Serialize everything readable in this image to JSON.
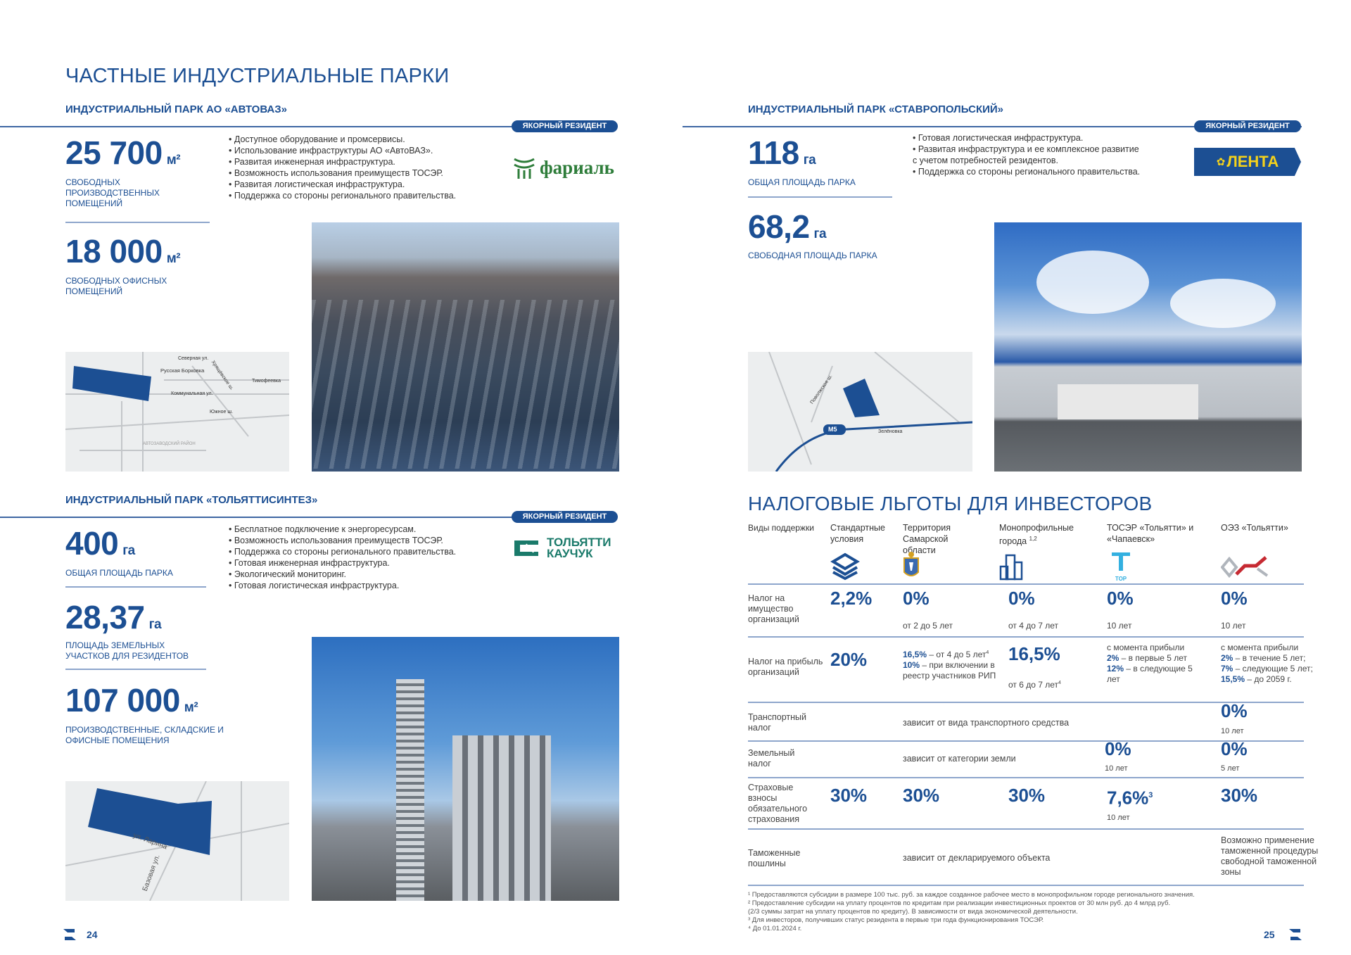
{
  "title": "ЧАСТНЫЕ ИНДУСТРИАЛЬНЫЕ ПАРКИ",
  "badge": "ЯКОРНЫЙ РЕЗИДЕНТ",
  "parks": [
    {
      "heading": "ИНДУСТРИАЛЬНЫЙ ПАРК АО «АВТОВАЗ»",
      "stats": [
        {
          "value": "25 700",
          "unit": "м²",
          "label": "СВОБОДНЫХ ПРОИЗВОДСТВЕННЫХ ПОМЕЩЕНИЙ"
        },
        {
          "value": "18 000",
          "unit": "м²",
          "label": "СВОБОДНЫХ ОФИСНЫХ ПОМЕЩЕНИЙ"
        }
      ],
      "bullets": [
        "• Доступное оборудование и промсервисы.",
        "• Использование инфраструктуры АО «АвтоВАЗ».",
        "• Развитая инженерная инфраструктура.",
        "• Возможность использования преимуществ ТОСЭР.",
        "• Развитая логистическая инфраструктура.",
        "• Поддержка со стороны регионального правительства."
      ],
      "resident_logo": "фариаль",
      "map_labels": [
        "Северная ул.",
        "Русская Борковка",
        "Коммунальная ул.",
        "Хрящёвское ш.",
        "Тимофеевка",
        "Южное ш.",
        "АВТОЗАВОДСКИЙ РАЙОН"
      ]
    },
    {
      "heading": "ИНДУСТРИАЛЬНЫЙ ПАРК «ТОЛЬЯТТИСИНТЕЗ»",
      "stats": [
        {
          "value": "400",
          "unit": "га",
          "label": "ОБЩАЯ ПЛОЩАДЬ ПАРКА"
        },
        {
          "value": "28,37",
          "unit": "га",
          "label": "ПЛОЩАДЬ ЗЕМЕЛЬНЫХ УЧАСТКОВ ДЛЯ РЕЗИДЕНТОВ"
        },
        {
          "value": "107 000",
          "unit": "м²",
          "label": "ПРОИЗВОДСТВЕННЫЕ, СКЛАДСКИЕ И ОФИСНЫЕ ПОМЕЩЕНИЯ"
        }
      ],
      "bullets": [
        "• Бесплатное подключение к энергоресурсам.",
        "• Возможность использования преимуществ ТОСЭР.",
        "• Поддержка со стороны регионального правительства.",
        "• Готовая инженерная инфраструктура.",
        "• Экологический мониторинг.",
        "• Готовая логистическая инфраструктура."
      ],
      "resident_logo_line1": "ТОЛЬЯТТИ",
      "resident_logo_line2": "КАУЧУК",
      "map_labels": [
        "ул. Ларина",
        "Базовая ул."
      ]
    },
    {
      "heading": "ИНДУСТРИАЛЬНЫЙ ПАРК «СТАВРОПОЛЬСКИЙ»",
      "stats": [
        {
          "value": "118",
          "unit": "га",
          "label": "ОБЩАЯ ПЛОЩАДЬ ПАРКА"
        },
        {
          "value": "68,2",
          "unit": "га",
          "label": "СВОБОДНАЯ ПЛОЩАДЬ ПАРКА"
        }
      ],
      "bullets": [
        "• Готовая логистическая инфраструктура.",
        "• Развитая инфраструктура и ее комплексное развитие",
        "с учетом потребностей резидентов.",
        "• Поддержка со стороны регионального правительства."
      ],
      "resident_logo": "ЛЕНТА",
      "map_labels": [
        "Поволжское ш.",
        "M5",
        "Зелёновка"
      ]
    }
  ],
  "tax": {
    "title": "НАЛОГОВЫЕ ЛЬГОТЫ ДЛЯ ИНВЕСТОРОВ",
    "columns": [
      "Виды поддержки",
      "Стандартные условия",
      "Территория Самарской области",
      "Монопрофильные города",
      "ТОСЭР «Тольятти» и «Чапаевск»",
      "ОЭЗ «Тольятти»"
    ],
    "col3_sup": "1,2",
    "tor_label": "TOP",
    "rows": [
      {
        "name": "Налог на имущество организаций",
        "c1": "2,2%",
        "c2": "0%",
        "c2s": "от 2 до 5 лет",
        "c3": "0%",
        "c3s": "от 4 до 7 лет",
        "c4": "0%",
        "c4s": "10 лет",
        "c5": "0%",
        "c5s": "10 лет"
      },
      {
        "name": "Налог на прибыль организаций",
        "c1": "20%",
        "c2a": "16,5%",
        "c2b": " – от 4 до 5 лет",
        "c2bsup": "4",
        "c2c": "10%",
        "c2d": " – при включении в реестр участников РИП",
        "c3": "16,5%",
        "c3s": "от 6 до 7 лет",
        "c3sup": "4",
        "c4a": "с момента прибыли",
        "c4b": "2%",
        "c4c": " – в первые 5 лет",
        "c4d": "12%",
        "c4e": " – в следующие 5 лет",
        "c5a": "с момента прибыли",
        "c5b": "2%",
        "c5c": " – в течение 5 лет;",
        "c5d": "7%",
        "c5e": " – следующие 5 лет;",
        "c5f": "15,5%",
        "c5g": " – до 2059 г."
      },
      {
        "name": "Транспортный налог",
        "span": "зависит от вида транспортного средства",
        "c5": "0%",
        "c5s": "10 лет"
      },
      {
        "name": "Земельный налог",
        "span": "зависит от категории земли",
        "c4": "0%",
        "c4s": "10 лет",
        "c5": "0%",
        "c5s": "5 лет"
      },
      {
        "name": "Страховые взносы обязательного страхования",
        "c1": "30%",
        "c2": "30%",
        "c3": "30%",
        "c4": "7,6%",
        "c4sup": "3",
        "c4s": "10 лет",
        "c5": "30%"
      },
      {
        "name": "Таможенные пошлины",
        "span": "зависит от декларируемого объекта",
        "c5": "Возможно применение таможенной процедуры свободной таможенной зоны"
      }
    ],
    "footnotes": [
      "¹ Предоставляются субсидии в размере 100 тыс. руб. за каждое созданное рабочее место в монопрофильном городе регионального значения.",
      "² Предоставление субсидии на уплату процентов по кредитам при реализации инвестиционных проектов от 30 млн руб. до 4 млрд руб.",
      "(2/3 суммы затрат на уплату процентов по кредиту). В зависимости от вида экономической деятельности.",
      "³ Для инвесторов, получивших статус резидента в первые три года функционирования ТОСЭР.",
      "⁴ До 01.01.2024 г."
    ]
  },
  "pages": {
    "left": "24",
    "right": "25"
  },
  "colors": {
    "brand": "#1c4f93",
    "lenta_bg": "#1c4f93",
    "lenta_text": "#f5d21a",
    "farial": "#2e7d3a",
    "kauchuk": "#1a7a6a"
  }
}
